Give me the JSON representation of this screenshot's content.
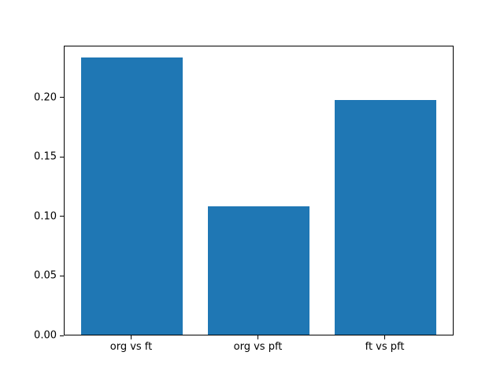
{
  "chart_data": {
    "type": "bar",
    "title": "",
    "xlabel": "",
    "ylabel": "",
    "categories": [
      "org vs ft",
      "org vs pft",
      "ft vs pft"
    ],
    "values": [
      0.233,
      0.108,
      0.197
    ],
    "ytick_labels": [
      "0.00",
      "0.05",
      "0.10",
      "0.15",
      "0.20"
    ],
    "ytick_values": [
      0.0,
      0.05,
      0.1,
      0.15,
      0.2
    ],
    "ylim": [
      0,
      0.2435
    ],
    "xlim": [
      -0.531,
      2.543
    ],
    "x_positions": [
      0,
      1,
      2
    ],
    "bar_width": 0.8,
    "bar_color": "#1f77b4",
    "axis_color": "#000000",
    "background_color": "#ffffff",
    "grid": false,
    "legend": null
  }
}
